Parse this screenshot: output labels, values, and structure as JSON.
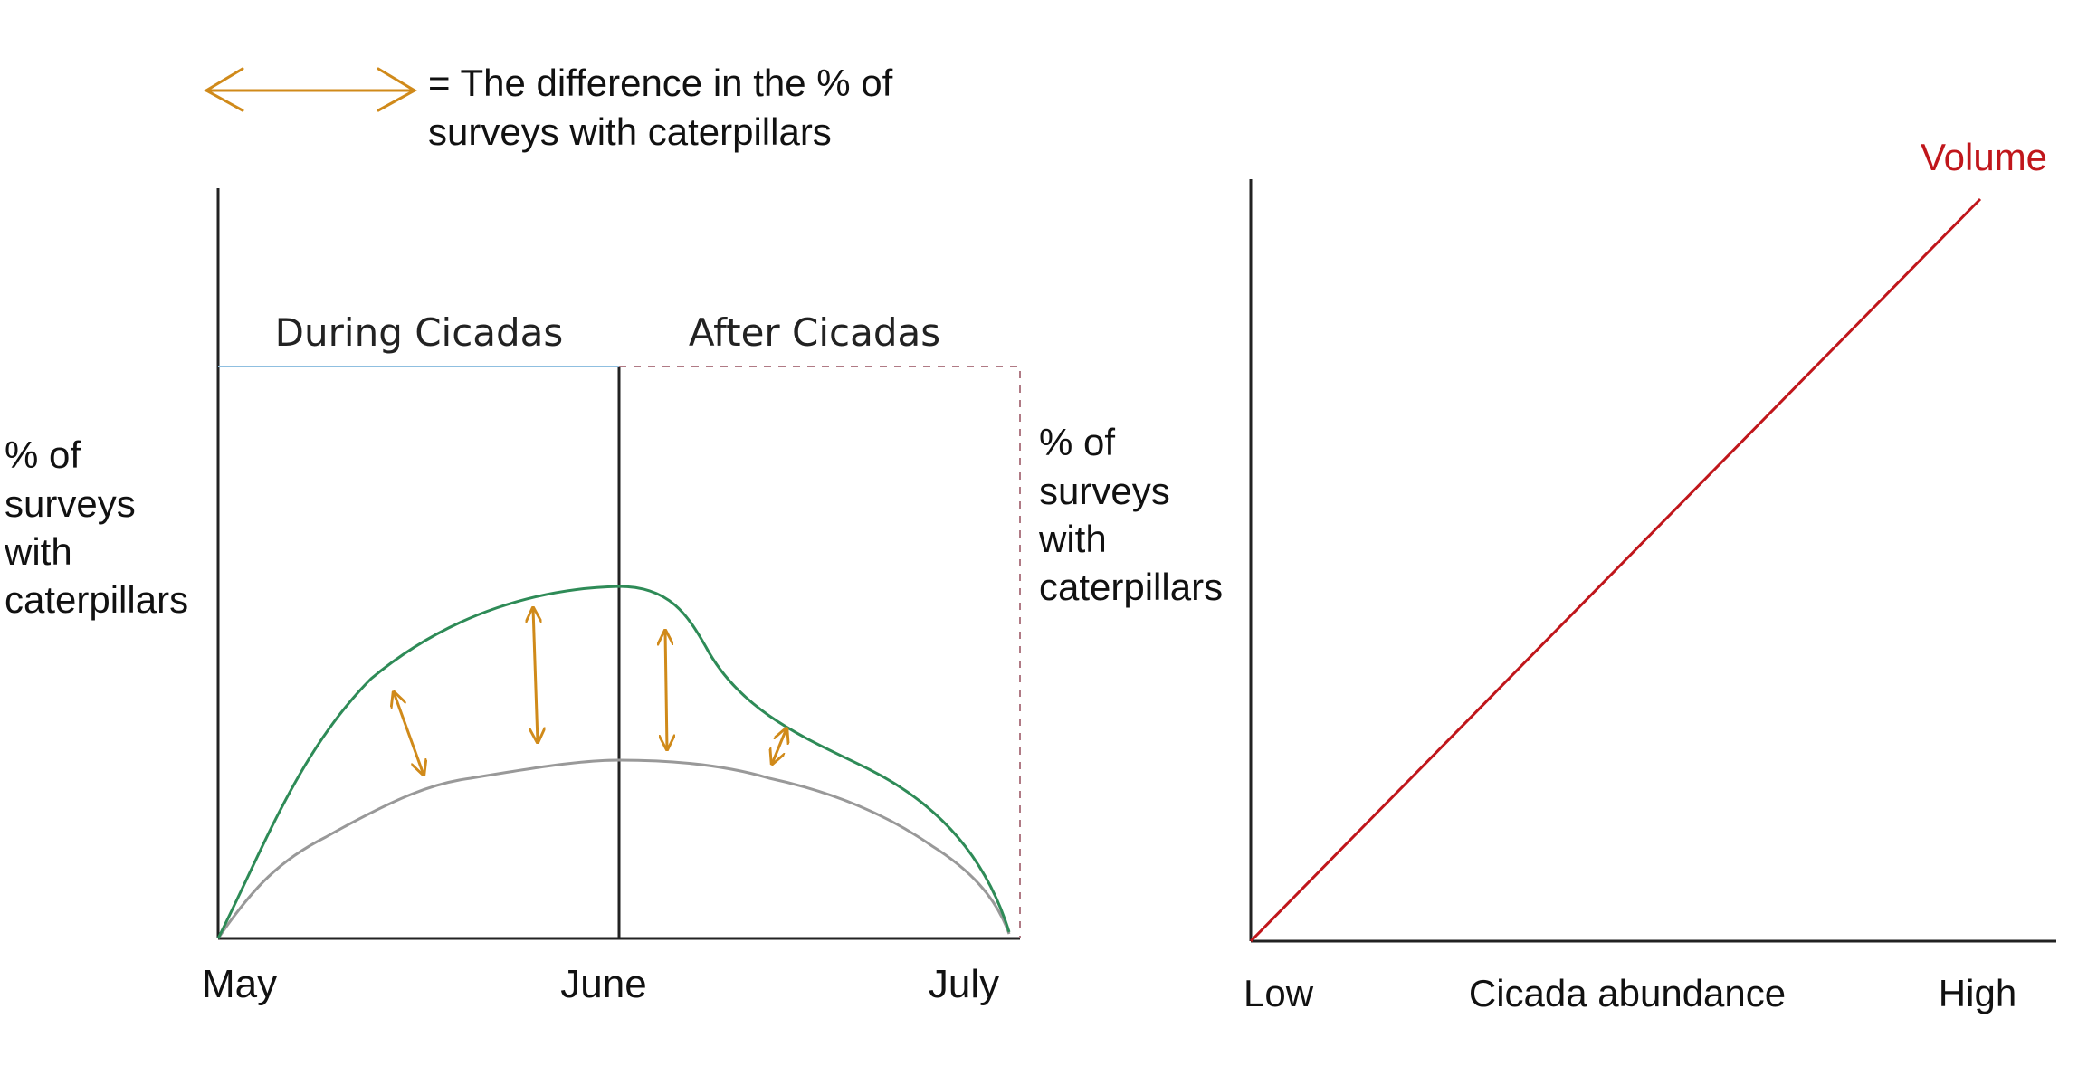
{
  "colors": {
    "axis": "#222222",
    "green": "#2e8b57",
    "gray": "#999999",
    "orange": "#d08a1a",
    "red": "#c0161b",
    "blue_line": "#8fbfe0",
    "dashed": "#b07a85"
  },
  "legend": {
    "line1": "= The difference in the % of",
    "line2": "surveys with caterpillars"
  },
  "left_chart": {
    "section_during": "During Cicadas",
    "section_after": "After Cicadas",
    "ylabel_left": [
      "% of",
      "surveys",
      "with",
      "caterpillars"
    ],
    "ylabel_right": [
      "% of",
      "surveys",
      "with",
      "caterpillars"
    ],
    "x_ticks": [
      "May",
      "June",
      "July"
    ]
  },
  "right_chart": {
    "line_label": "Volume",
    "x_low": "Low",
    "x_label": "Cicada abundance",
    "x_high": "High"
  }
}
